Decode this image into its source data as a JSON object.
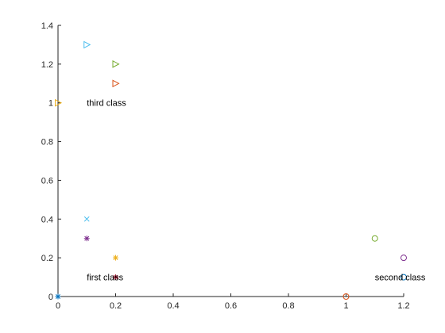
{
  "chart_data": {
    "type": "scatter",
    "title": "",
    "xlabel": "",
    "ylabel": "",
    "xlim": [
      0,
      1.2
    ],
    "ylim": [
      0,
      1.4
    ],
    "xticks": [
      0,
      0.2,
      0.4,
      0.6,
      0.8,
      1,
      1.2
    ],
    "yticks": [
      0,
      0.2,
      0.4,
      0.6,
      0.8,
      1,
      1.2,
      1.4
    ],
    "xtick_labels": [
      "0",
      "0.2",
      "0.4",
      "0.6",
      "0.8",
      "1",
      "1.2"
    ],
    "ytick_labels": [
      "0",
      "0.2",
      "0.4",
      "0.6",
      "0.8",
      "1",
      "1.2",
      "1.4"
    ],
    "grid": false,
    "box": false,
    "points": [
      {
        "x": 0.0,
        "y": 0.0,
        "marker": "asterisk",
        "color": "#0072BD"
      },
      {
        "x": 0.1,
        "y": 0.4,
        "marker": "x",
        "color": "#4DBEEE"
      },
      {
        "x": 0.1,
        "y": 0.3,
        "marker": "asterisk",
        "color": "#7E2F8E"
      },
      {
        "x": 0.2,
        "y": 0.2,
        "marker": "asterisk",
        "color": "#EDB120"
      },
      {
        "x": 0.2,
        "y": 0.1,
        "marker": "asterisk",
        "color": "#A2142F"
      },
      {
        "x": 1.0,
        "y": 0.0,
        "marker": "circle",
        "color": "#D95319"
      },
      {
        "x": 1.1,
        "y": 0.3,
        "marker": "circle",
        "color": "#77AC30"
      },
      {
        "x": 1.2,
        "y": 0.2,
        "marker": "circle",
        "color": "#7E2F8E"
      },
      {
        "x": 1.2,
        "y": 0.1,
        "marker": "circle",
        "color": "#0072BD"
      },
      {
        "x": 0.0,
        "y": 1.0,
        "marker": "triangle-right",
        "color": "#EDB120"
      },
      {
        "x": 0.1,
        "y": 1.3,
        "marker": "triangle-right",
        "color": "#4DBEEE"
      },
      {
        "x": 0.2,
        "y": 1.2,
        "marker": "triangle-right",
        "color": "#77AC30"
      },
      {
        "x": 0.2,
        "y": 1.1,
        "marker": "triangle-right",
        "color": "#D95319"
      }
    ],
    "annotations": [
      {
        "text": "first class",
        "x": 0.1,
        "y": 0.1
      },
      {
        "text": "second class",
        "x": 1.1,
        "y": 0.1
      },
      {
        "text": "third class",
        "x": 0.1,
        "y": 1.0
      }
    ]
  }
}
